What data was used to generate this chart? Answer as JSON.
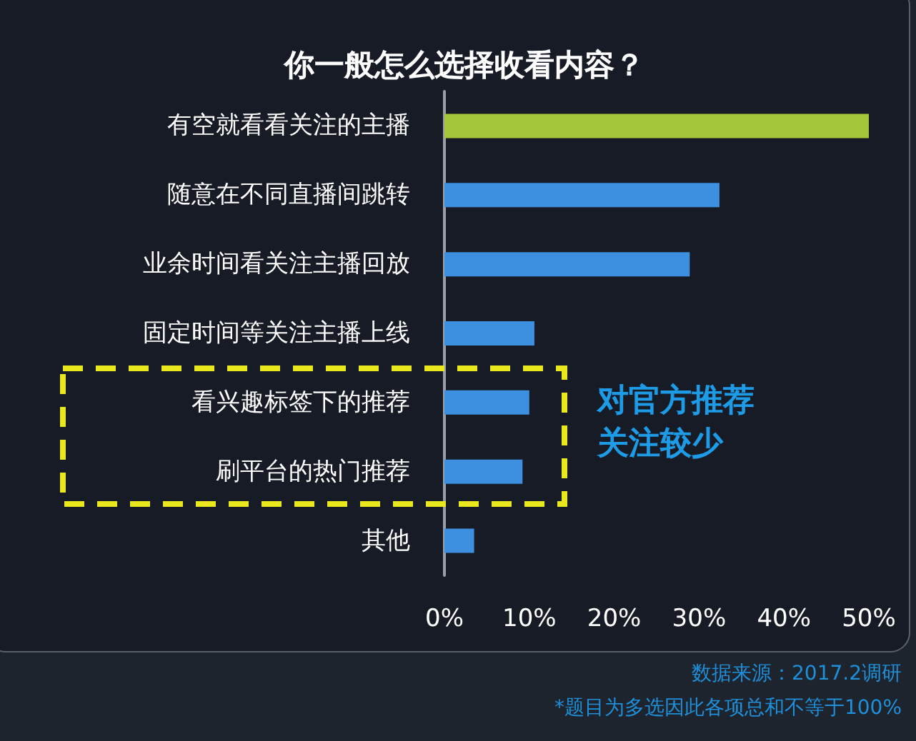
{
  "chart_data": {
    "type": "bar",
    "orientation": "horizontal",
    "title": "你一般怎么选择收看内容？",
    "categories": [
      "有空就看看关注的主播",
      "随意在不同直播间跳转",
      "业余时间看关注主播回放",
      "固定时间等关注主播上线",
      "看兴趣标签下的推荐",
      "刷平台的热门推荐",
      "其他"
    ],
    "values": [
      50,
      32.4,
      28.9,
      10.6,
      10.0,
      9.2,
      3.5
    ],
    "colors": [
      "#a4c639",
      "#3d8fe0",
      "#3d8fe0",
      "#3d8fe0",
      "#3d8fe0",
      "#3d8fe0",
      "#3d8fe0"
    ],
    "xlim": [
      0,
      50
    ],
    "xticks": [
      {
        "value": 0,
        "label": "0%"
      },
      {
        "value": 10,
        "label": "10%"
      },
      {
        "value": 20,
        "label": "20%"
      },
      {
        "value": 30,
        "label": "30%"
      },
      {
        "value": 40,
        "label": "40%"
      },
      {
        "value": 50,
        "label": "50%"
      }
    ],
    "grid": false,
    "annotations": [
      "对官方推荐关注较少",
      "数据来源：2017.2调研",
      "*题目为多选因此各项总和不等于100%"
    ]
  }
}
